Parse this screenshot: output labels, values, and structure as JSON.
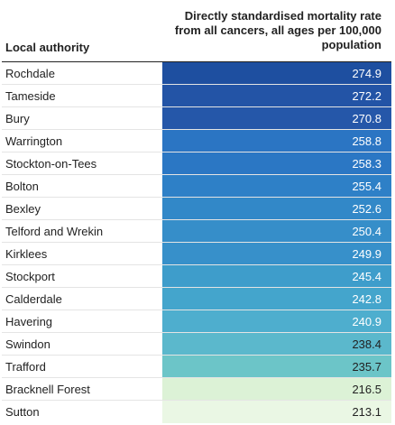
{
  "chart_data": {
    "type": "table",
    "columns": [
      "Local authority",
      "Directly standardised mortality rate from all cancers, all ages per 100,000 population"
    ],
    "rows": [
      {
        "name": "Rochdale",
        "value": "274.9",
        "color": "#1e4fa0",
        "text_color": "#ffffff"
      },
      {
        "name": "Tameside",
        "value": "272.2",
        "color": "#2354a6",
        "text_color": "#ffffff"
      },
      {
        "name": "Bury",
        "value": "270.8",
        "color": "#2557a9",
        "text_color": "#ffffff"
      },
      {
        "name": "Warrington",
        "value": "258.8",
        "color": "#2b75c3",
        "text_color": "#ffffff"
      },
      {
        "name": "Stockton-on-Tees",
        "value": "258.3",
        "color": "#2b77c4",
        "text_color": "#ffffff"
      },
      {
        "name": "Bolton",
        "value": "255.4",
        "color": "#2e80c7",
        "text_color": "#ffffff"
      },
      {
        "name": "Bexley",
        "value": "252.6",
        "color": "#3288c8",
        "text_color": "#ffffff"
      },
      {
        "name": "Telford and Wrekin",
        "value": "250.4",
        "color": "#368ec9",
        "text_color": "#ffffff"
      },
      {
        "name": "Kirklees",
        "value": "249.9",
        "color": "#3790ca",
        "text_color": "#ffffff"
      },
      {
        "name": "Stockport",
        "value": "245.4",
        "color": "#3e9dcb",
        "text_color": "#ffffff"
      },
      {
        "name": "Calderdale",
        "value": "242.8",
        "color": "#44a5cc",
        "text_color": "#ffffff"
      },
      {
        "name": "Havering",
        "value": "240.9",
        "color": "#4eaece",
        "text_color": "#ffffff"
      },
      {
        "name": "Swindon",
        "value": "238.4",
        "color": "#5bb8cc",
        "text_color": "#222222"
      },
      {
        "name": "Trafford",
        "value": "235.7",
        "color": "#6cc5c8",
        "text_color": "#222222"
      },
      {
        "name": "Bracknell Forest",
        "value": "216.5",
        "color": "#dcf2d6",
        "text_color": "#222222"
      },
      {
        "name": "Sutton",
        "value": "213.1",
        "color": "#eaf7e4",
        "text_color": "#222222"
      }
    ]
  }
}
